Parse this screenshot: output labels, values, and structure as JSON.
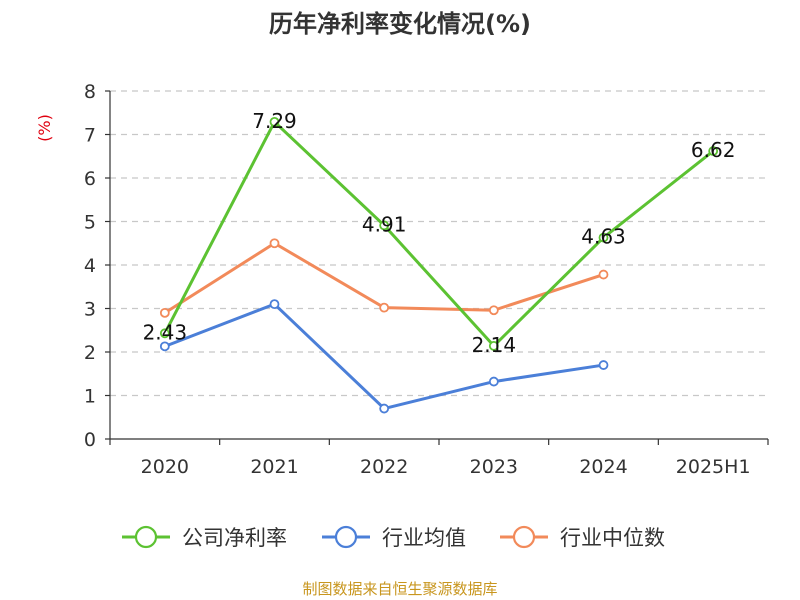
{
  "chart_data": {
    "type": "line",
    "title": "历年净利率变化情况(%)",
    "unit_label": "(%)",
    "categories": [
      "2020",
      "2021",
      "2022",
      "2023",
      "2024",
      "2025H1"
    ],
    "ylim": [
      0,
      8
    ],
    "yticks": [
      "0",
      "1",
      "2",
      "3",
      "4",
      "5",
      "6",
      "7",
      "8"
    ],
    "grid": true,
    "legend_position": "bottom",
    "series": [
      {
        "name": "公司净利率",
        "color": "#5cc232",
        "values": [
          2.43,
          7.29,
          4.91,
          2.14,
          4.63,
          6.62
        ],
        "labels": [
          "2.43",
          "7.29",
          "4.91",
          "2.14",
          "4.63",
          "6.62"
        ]
      },
      {
        "name": "行业均值",
        "color": "#4b7fd8",
        "values": [
          2.13,
          3.1,
          0.7,
          1.32,
          1.7,
          null
        ]
      },
      {
        "name": "行业中位数",
        "color": "#f28a5a",
        "values": [
          2.9,
          4.5,
          3.02,
          2.96,
          3.78,
          null
        ]
      }
    ],
    "source": "制图数据来自恒生聚源数据库"
  }
}
